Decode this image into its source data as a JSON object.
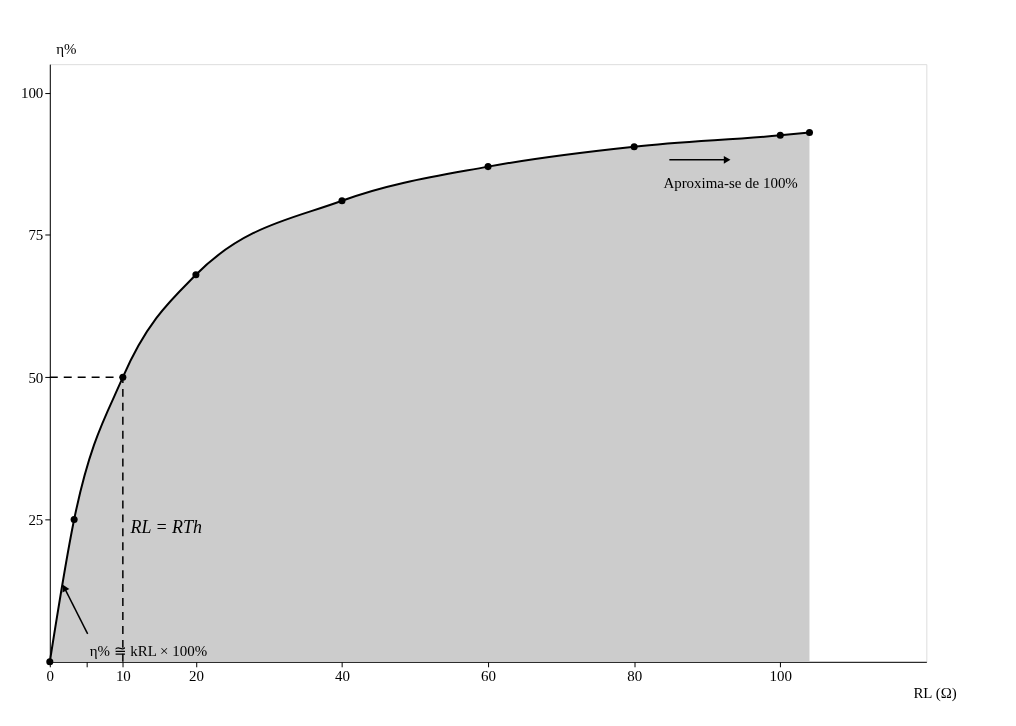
{
  "chart_data": {
    "type": "area",
    "xlabel": "RL (Ω)",
    "ylabel": "η%",
    "x": [
      0,
      3.33,
      10,
      20,
      40,
      60,
      80,
      100,
      104
    ],
    "series": [
      {
        "color": "#cccccc",
        "values": [
          0,
          25,
          50,
          68,
          81,
          87,
          90.5,
          92.5,
          93
        ]
      }
    ],
    "marker": "circle",
    "grid": false,
    "xlim": [
      0,
      120
    ],
    "xticks": [
      0,
      {
        "value": 5,
        "label": null
      },
      10,
      20,
      40,
      60,
      80,
      100
    ],
    "ylim": [
      0,
      105
    ],
    "yticks": [
      25,
      50,
      75,
      100
    ],
    "ref_lines": [
      {
        "axis": "x",
        "value": 10,
        "line_style": "dashed"
      },
      {
        "axis": "y",
        "value": 50,
        "line_style": "dashed"
      }
    ],
    "annotations": [
      "Aproxima-se de 100%",
      "RL = RTh",
      {
        "text": "η% ≅ kRL × 100%",
        "x": 2,
        "y": 13
      }
    ]
  }
}
